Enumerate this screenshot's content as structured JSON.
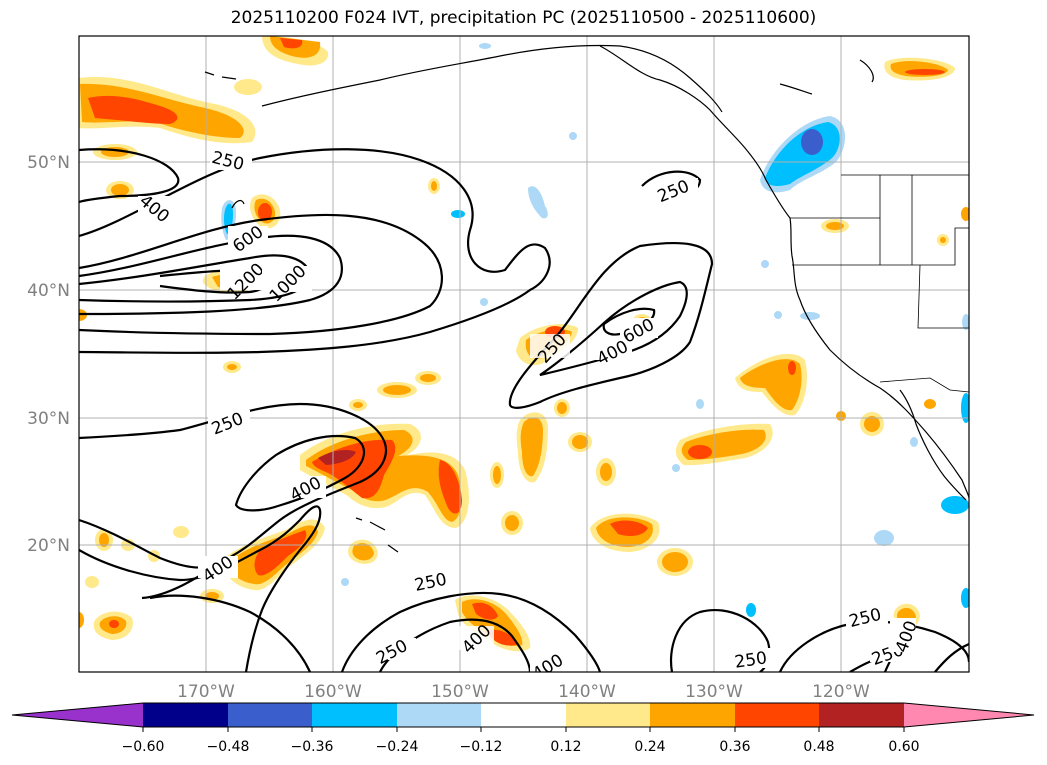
{
  "title": "2025110200 F024 IVT, precipitation PC (2025110500 - 2025110600)",
  "map": {
    "lat_labels": [
      "50°N",
      "40°N",
      "30°N",
      "20°N"
    ],
    "lon_labels": [
      "170°W",
      "160°W",
      "150°W",
      "140°W",
      "130°W",
      "120°W"
    ],
    "contour_labels": [
      "250",
      "250",
      "400",
      "600",
      "1200",
      "1000",
      "250",
      "400",
      "600",
      "250",
      "400",
      "400",
      "250",
      "400",
      "250",
      "400",
      "250",
      "250",
      "250",
      "400"
    ]
  },
  "colorbar": {
    "ticks": [
      "−0.60",
      "−0.48",
      "−0.36",
      "−0.24",
      "−0.12",
      "0.12",
      "0.24",
      "0.36",
      "0.48",
      "0.60"
    ],
    "colors": [
      "#9932cc",
      "#00008b",
      "#3a5fcd",
      "#00bfff",
      "#add8f6",
      "#ffffff",
      "#ffe98a",
      "#ffa500",
      "#ff4500",
      "#b22222",
      "#ff88b0"
    ]
  }
}
